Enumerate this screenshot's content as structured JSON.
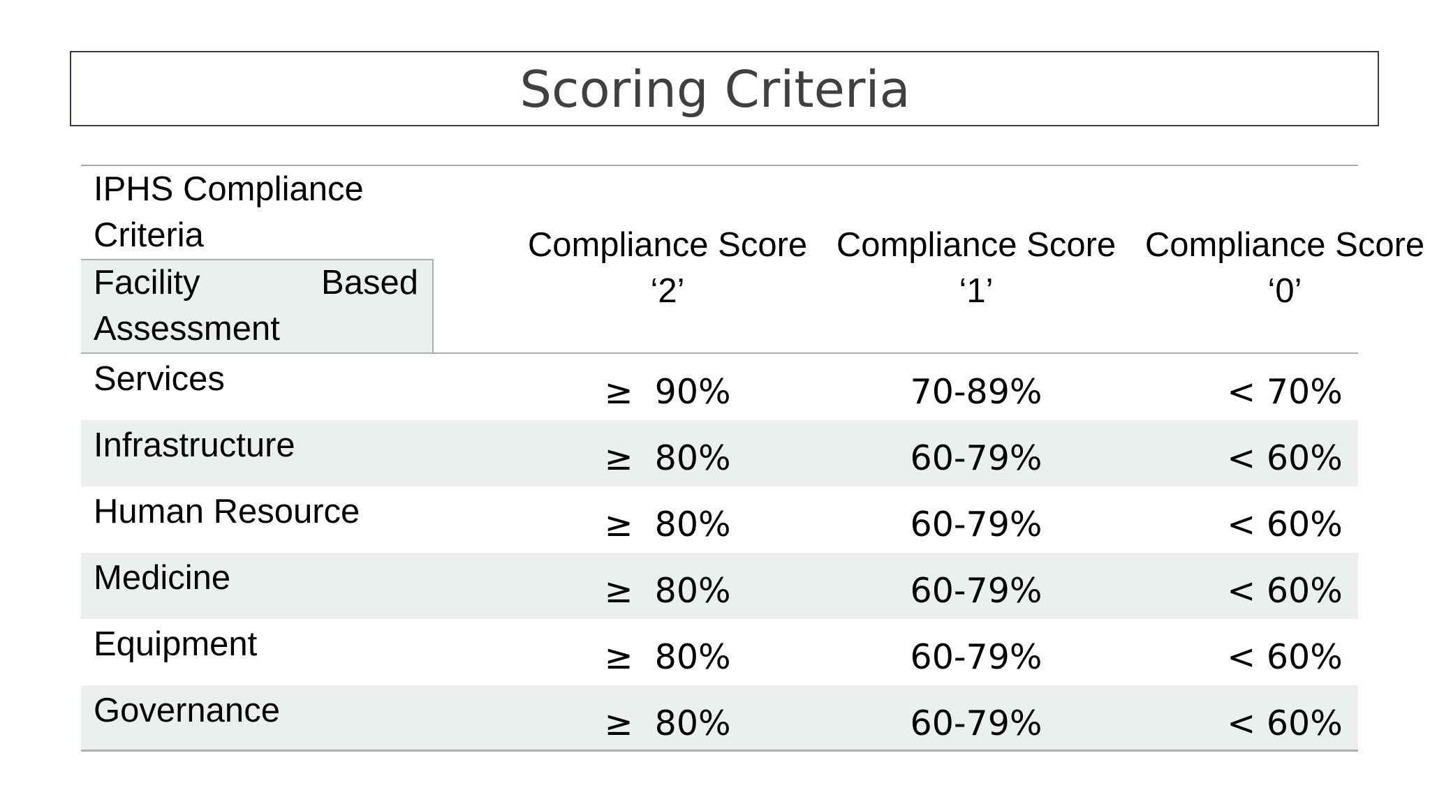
{
  "title": "Scoring Criteria",
  "table": {
    "header": {
      "criteria": "IPHS Compliance Criteria",
      "subheader": "Facility Based Assessment",
      "columns": [
        "Compliance Score ‘2’",
        "Compliance Score ‘1’",
        "Compliance Score ‘0’"
      ]
    },
    "rows": [
      {
        "label": "Services",
        "score2": "≥  90%",
        "score1": "70-89%",
        "score0": "< 70%"
      },
      {
        "label": "Infrastructure",
        "score2": "≥  80%",
        "score1": "60-79%",
        "score0": "< 60%"
      },
      {
        "label": "Human Resource",
        "score2": "≥  80%",
        "score1": "60-79%",
        "score0": "< 60%"
      },
      {
        "label": "Medicine",
        "score2": "≥  80%",
        "score1": "60-79%",
        "score0": "< 60%"
      },
      {
        "label": "Equipment",
        "score2": "≥  80%",
        "score1": "60-79%",
        "score0": "< 60%"
      },
      {
        "label": "Governance",
        "score2": "≥  80%",
        "score1": "60-79%",
        "score0": "< 60%"
      }
    ]
  }
}
